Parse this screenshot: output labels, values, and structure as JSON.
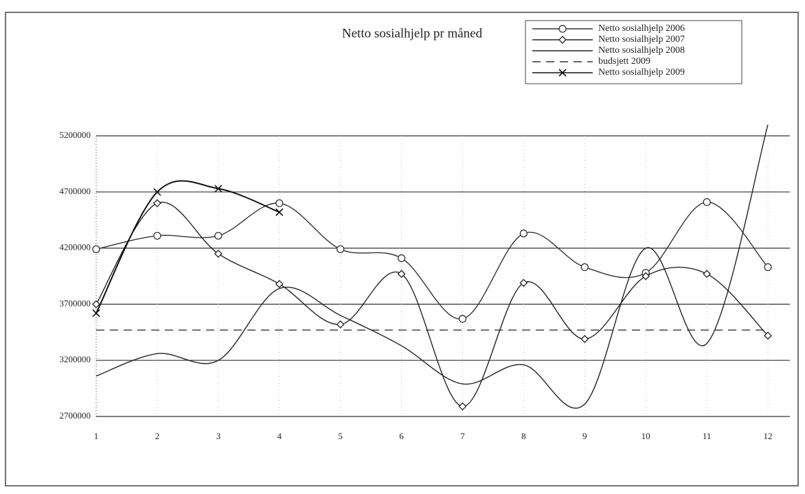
{
  "chart_data": {
    "type": "line",
    "title": "Netto sosialhjelp pr måned",
    "categories": [
      "1",
      "2",
      "3",
      "4",
      "5",
      "6",
      "7",
      "8",
      "9",
      "10",
      "11",
      "12"
    ],
    "series": [
      {
        "name": "Netto sosialhjelp 2006",
        "color": "#333333",
        "marker": "circle",
        "dashed": false,
        "values": [
          4190000,
          4310000,
          4310000,
          4600000,
          4190000,
          4110000,
          3570000,
          4330000,
          4030000,
          3980000,
          4610000,
          4030000
        ]
      },
      {
        "name": "Netto sosialhjelp 2007",
        "color": "#222222",
        "marker": "diamond",
        "dashed": false,
        "values": [
          3700000,
          4600000,
          4150000,
          3880000,
          3520000,
          3970000,
          2790000,
          3890000,
          3390000,
          3950000,
          3970000,
          3420000
        ]
      },
      {
        "name": "Netto sosialhjelp 2008",
        "color": "#222222",
        "marker": null,
        "dashed": false,
        "values": [
          3060000,
          3260000,
          3200000,
          3840000,
          3600000,
          3330000,
          2990000,
          3160000,
          2810000,
          4200000,
          3350000,
          5300000
        ]
      },
      {
        "name": "budsjett 2009",
        "color": "#333333",
        "marker": null,
        "dashed": true,
        "values": [
          3470000,
          3470000,
          3470000,
          3470000,
          3470000,
          3470000,
          3470000,
          3470000,
          3470000,
          3470000,
          3470000,
          3470000
        ]
      },
      {
        "name": "Netto sosialhjelp 2009",
        "color": "#111111",
        "marker": "x",
        "dashed": false,
        "values": [
          3620000,
          4700000,
          4730000,
          4520000,
          null,
          null,
          null,
          null,
          null,
          null,
          null,
          null
        ]
      }
    ],
    "ylim": [
      2700000,
      5200000
    ],
    "yticks": [
      2700000,
      3200000,
      3700000,
      4200000,
      4700000,
      5200000
    ],
    "grid": true,
    "legend": "top-right"
  }
}
